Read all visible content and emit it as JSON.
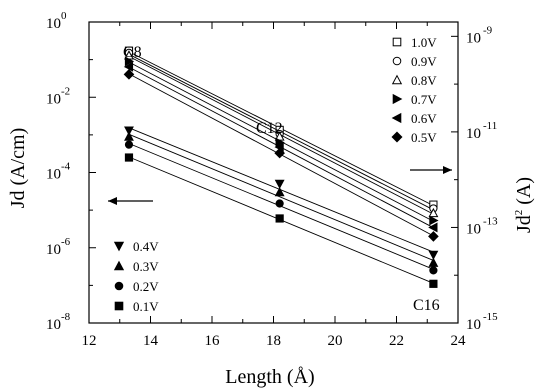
{
  "chart_data": {
    "type": "scatter",
    "title": "",
    "xlabel": "Length (Å)",
    "ylabel_left": "Jd (A/cm)",
    "ylabel_right": {
      "base": "Jd",
      "exp": "2",
      "unit": " (A)"
    },
    "xlim": [
      12,
      24
    ],
    "ylim_left_log10": [
      -8,
      0
    ],
    "ylim_right_log10": [
      -15,
      -8.7
    ],
    "y_scale": "log",
    "grid": false,
    "x_ticks": [
      12,
      14,
      16,
      18,
      20,
      22,
      24
    ],
    "y_left_ticks": [
      {
        "exp": -8,
        "base": "10",
        "sup": "-8"
      },
      {
        "exp": -6,
        "base": "10",
        "sup": "-6"
      },
      {
        "exp": -4,
        "base": "10",
        "sup": "-4"
      },
      {
        "exp": -2,
        "base": "10",
        "sup": "-2"
      },
      {
        "exp": 0,
        "base": "10",
        "sup": "0"
      }
    ],
    "y_right_ticks": [
      {
        "exp": -15,
        "base": "10",
        "sup": "-15"
      },
      {
        "exp": -13,
        "base": "10",
        "sup": "-13"
      },
      {
        "exp": -11,
        "base": "10",
        "sup": "-11"
      },
      {
        "exp": -9,
        "base": "10",
        "sup": "-9"
      }
    ],
    "x": [
      13.3,
      18.2,
      23.2
    ],
    "series": [
      {
        "name": "1.0V",
        "axis": "right",
        "marker": "square-open",
        "values": [
          5e-10,
          1.1e-11,
          3e-13
        ]
      },
      {
        "name": "0.9V",
        "axis": "right",
        "marker": "circle-open",
        "values": [
          4.5e-10,
          9e-12,
          2.5e-13
        ]
      },
      {
        "name": "0.8V",
        "axis": "right",
        "marker": "triangle-up-open",
        "values": [
          4e-10,
          8e-12,
          2e-13
        ]
      },
      {
        "name": "0.7V",
        "axis": "right",
        "marker": "triangle-right-filled",
        "values": [
          3e-10,
          6e-12,
          1.4e-13
        ]
      },
      {
        "name": "0.6V",
        "axis": "right",
        "marker": "triangle-left-filled",
        "values": [
          2.3e-10,
          4.8e-12,
          1e-13
        ]
      },
      {
        "name": "0.5V",
        "axis": "right",
        "marker": "diamond-filled",
        "values": [
          1.6e-10,
          3.6e-12,
          6.5e-14
        ]
      },
      {
        "name": "0.4V",
        "axis": "left",
        "marker": "triangle-down-filled",
        "values": [
          0.0013,
          5e-05,
          6.5e-07
        ]
      },
      {
        "name": "0.3V",
        "axis": "left",
        "marker": "triangle-up-filled",
        "values": [
          0.0009,
          3e-05,
          4e-07
        ]
      },
      {
        "name": "0.2V",
        "axis": "left",
        "marker": "circle-filled",
        "values": [
          0.00055,
          1.5e-05,
          2.5e-07
        ]
      },
      {
        "name": "0.1V",
        "axis": "left",
        "marker": "square-filled",
        "values": [
          0.00025,
          6e-06,
          1.1e-07
        ]
      }
    ],
    "legend_right_placement": "top-right",
    "legend_left_placement": "bottom-left",
    "annotations": [
      {
        "text": "C8",
        "x": 13.3
      },
      {
        "text": "C12",
        "x": 18.2
      },
      {
        "text": "C16",
        "x": 23.2
      }
    ],
    "arrows": [
      {
        "direction": "left",
        "meaning": "left axis"
      },
      {
        "direction": "right",
        "meaning": "right axis"
      }
    ]
  }
}
